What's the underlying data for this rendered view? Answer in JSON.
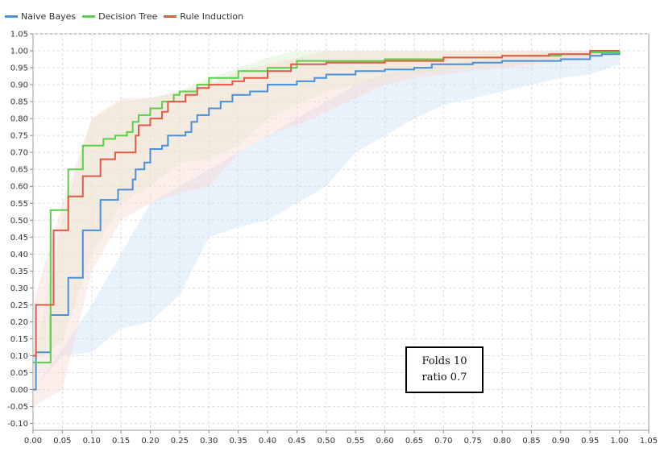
{
  "chart_data": {
    "type": "line",
    "title": "",
    "xlabel": "",
    "ylabel": "",
    "xlim": [
      0.0,
      1.05
    ],
    "ylim": [
      -0.12,
      1.05
    ],
    "grid": true,
    "legend_position": "top-left",
    "x_ticks": [
      "0.00",
      "0.05",
      "0.10",
      "0.15",
      "0.20",
      "0.25",
      "0.30",
      "0.35",
      "0.40",
      "0.45",
      "0.50",
      "0.55",
      "0.60",
      "0.65",
      "0.70",
      "0.75",
      "0.80",
      "0.85",
      "0.90",
      "0.95",
      "1.00",
      "1.05"
    ],
    "y_ticks": [
      "-0.10",
      "-0.05",
      "0.00",
      "0.05",
      "0.10",
      "0.15",
      "0.20",
      "0.25",
      "0.30",
      "0.35",
      "0.40",
      "0.45",
      "0.50",
      "0.55",
      "0.60",
      "0.65",
      "0.70",
      "0.75",
      "0.80",
      "0.85",
      "0.90",
      "0.95",
      "1.00",
      "1.05"
    ],
    "series": [
      {
        "name": "Naive Bayes",
        "color": "#4a90d9",
        "band_color": "#cfe0f7",
        "points": [
          [
            0.0,
            0.0
          ],
          [
            0.005,
            0.11
          ],
          [
            0.03,
            0.11
          ],
          [
            0.03,
            0.22
          ],
          [
            0.055,
            0.22
          ],
          [
            0.06,
            0.33
          ],
          [
            0.08,
            0.33
          ],
          [
            0.085,
            0.47
          ],
          [
            0.11,
            0.47
          ],
          [
            0.115,
            0.56
          ],
          [
            0.14,
            0.56
          ],
          [
            0.145,
            0.59
          ],
          [
            0.165,
            0.59
          ],
          [
            0.17,
            0.62
          ],
          [
            0.175,
            0.65
          ],
          [
            0.19,
            0.67
          ],
          [
            0.2,
            0.71
          ],
          [
            0.22,
            0.72
          ],
          [
            0.23,
            0.75
          ],
          [
            0.26,
            0.76
          ],
          [
            0.27,
            0.79
          ],
          [
            0.28,
            0.81
          ],
          [
            0.3,
            0.83
          ],
          [
            0.32,
            0.85
          ],
          [
            0.34,
            0.87
          ],
          [
            0.37,
            0.88
          ],
          [
            0.4,
            0.9
          ],
          [
            0.45,
            0.91
          ],
          [
            0.48,
            0.92
          ],
          [
            0.5,
            0.93
          ],
          [
            0.55,
            0.94
          ],
          [
            0.6,
            0.945
          ],
          [
            0.65,
            0.95
          ],
          [
            0.68,
            0.96
          ],
          [
            0.75,
            0.965
          ],
          [
            0.8,
            0.97
          ],
          [
            0.9,
            0.975
          ],
          [
            0.95,
            0.985
          ],
          [
            0.97,
            0.99
          ],
          [
            1.0,
            1.0
          ]
        ],
        "band_upper": [
          0.0,
          0.12,
          0.25,
          0.4,
          0.55,
          0.6,
          0.65,
          0.7,
          0.75,
          0.8,
          0.85,
          0.9,
          0.93,
          0.95,
          0.96,
          0.97,
          0.98,
          0.99,
          1.0,
          1.0,
          1.0,
          1.0
        ],
        "band_lower": [
          0.0,
          0.1,
          0.11,
          0.18,
          0.2,
          0.28,
          0.45,
          0.48,
          0.5,
          0.55,
          0.6,
          0.7,
          0.75,
          0.8,
          0.84,
          0.86,
          0.88,
          0.9,
          0.92,
          0.93,
          0.96,
          1.0
        ]
      },
      {
        "name": "Decision Tree",
        "color": "#5ad04a",
        "band_color": "#d9f2cf",
        "points": [
          [
            0.0,
            0.08
          ],
          [
            0.03,
            0.08
          ],
          [
            0.03,
            0.53
          ],
          [
            0.05,
            0.53
          ],
          [
            0.06,
            0.65
          ],
          [
            0.08,
            0.65
          ],
          [
            0.085,
            0.72
          ],
          [
            0.11,
            0.72
          ],
          [
            0.12,
            0.74
          ],
          [
            0.14,
            0.75
          ],
          [
            0.16,
            0.76
          ],
          [
            0.17,
            0.79
          ],
          [
            0.18,
            0.81
          ],
          [
            0.2,
            0.83
          ],
          [
            0.22,
            0.85
          ],
          [
            0.24,
            0.87
          ],
          [
            0.25,
            0.88
          ],
          [
            0.28,
            0.9
          ],
          [
            0.3,
            0.92
          ],
          [
            0.35,
            0.94
          ],
          [
            0.4,
            0.95
          ],
          [
            0.45,
            0.97
          ],
          [
            0.55,
            0.97
          ],
          [
            0.6,
            0.975
          ],
          [
            0.7,
            0.98
          ],
          [
            0.8,
            0.985
          ],
          [
            0.9,
            0.99
          ],
          [
            0.95,
            0.995
          ],
          [
            1.0,
            1.0
          ]
        ],
        "band_upper": [
          0.08,
          0.5,
          0.8,
          0.85,
          0.86,
          0.88,
          0.92,
          0.95,
          0.98,
          1.0,
          1.0,
          1.0,
          1.0,
          1.0,
          1.0,
          1.0,
          1.0,
          1.0,
          1.0,
          1.0,
          1.0,
          1.0
        ],
        "band_lower": [
          0.08,
          0.14,
          0.4,
          0.55,
          0.6,
          0.67,
          0.68,
          0.72,
          0.8,
          0.84,
          0.88,
          0.9,
          0.92,
          0.93,
          0.94,
          0.95,
          0.96,
          0.97,
          0.97,
          0.98,
          0.99,
          1.0
        ]
      },
      {
        "name": "Rule Induction",
        "color": "#e05a45",
        "band_color": "#f8d9d3",
        "points": [
          [
            0.0,
            0.1
          ],
          [
            0.005,
            0.25
          ],
          [
            0.03,
            0.25
          ],
          [
            0.035,
            0.47
          ],
          [
            0.055,
            0.47
          ],
          [
            0.06,
            0.57
          ],
          [
            0.08,
            0.57
          ],
          [
            0.085,
            0.63
          ],
          [
            0.11,
            0.63
          ],
          [
            0.115,
            0.68
          ],
          [
            0.13,
            0.68
          ],
          [
            0.14,
            0.7
          ],
          [
            0.17,
            0.7
          ],
          [
            0.175,
            0.75
          ],
          [
            0.18,
            0.78
          ],
          [
            0.2,
            0.8
          ],
          [
            0.22,
            0.82
          ],
          [
            0.23,
            0.85
          ],
          [
            0.26,
            0.87
          ],
          [
            0.28,
            0.89
          ],
          [
            0.3,
            0.9
          ],
          [
            0.32,
            0.9
          ],
          [
            0.34,
            0.91
          ],
          [
            0.36,
            0.92
          ],
          [
            0.4,
            0.94
          ],
          [
            0.44,
            0.96
          ],
          [
            0.5,
            0.965
          ],
          [
            0.6,
            0.97
          ],
          [
            0.7,
            0.98
          ],
          [
            0.8,
            0.985
          ],
          [
            0.88,
            0.99
          ],
          [
            0.95,
            1.0
          ],
          [
            1.0,
            1.0
          ]
        ],
        "band_upper": [
          0.25,
          0.55,
          0.8,
          0.86,
          0.86,
          0.88,
          0.9,
          0.94,
          0.96,
          0.98,
          1.0,
          1.0,
          1.0,
          1.0,
          1.0,
          1.0,
          1.0,
          1.0,
          1.0,
          1.0,
          1.0,
          1.0
        ],
        "band_lower": [
          -0.05,
          0.0,
          0.35,
          0.5,
          0.55,
          0.58,
          0.6,
          0.7,
          0.75,
          0.78,
          0.82,
          0.86,
          0.9,
          0.92,
          0.93,
          0.94,
          0.95,
          0.96,
          0.97,
          0.98,
          0.99,
          1.0
        ]
      }
    ],
    "annotation": [
      "Folds 10",
      "ratio 0.7"
    ]
  }
}
